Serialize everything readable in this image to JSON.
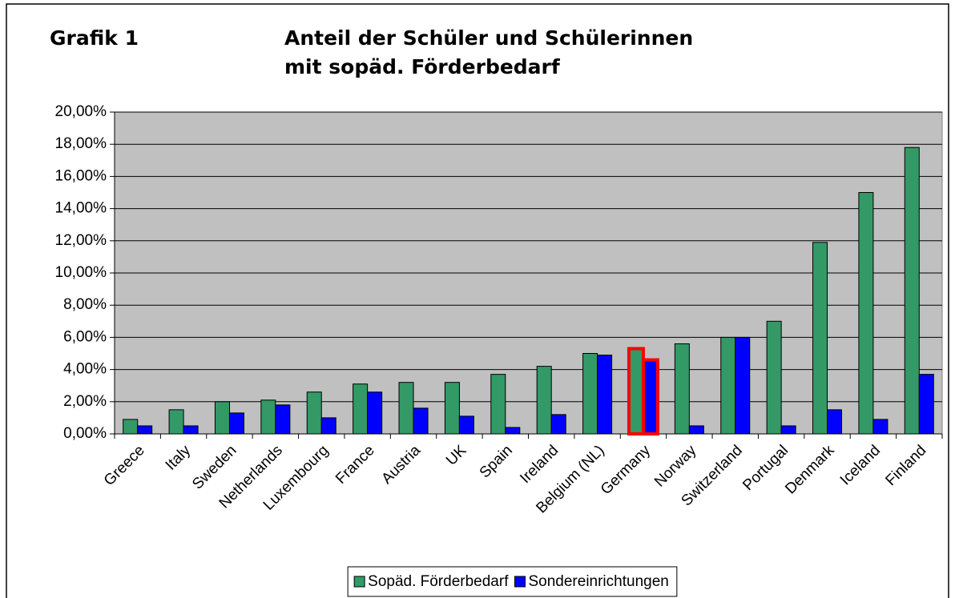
{
  "chart_data": {
    "type": "bar",
    "label": "Grafik 1",
    "title": "Anteil der Schüler und Schülerinnen mit sopäd. Förderbedarf",
    "categories": [
      "Greece",
      "Italy",
      "Sweden",
      "Netherlands",
      "Luxembourg",
      "France",
      "Austria",
      "UK",
      "Spain",
      "Ireland",
      "Belgium (NL)",
      "Germany",
      "Norway",
      "Switzerland",
      "Portugal",
      "Denmark",
      "Iceland",
      "Finland"
    ],
    "series": [
      {
        "name": "Sopäd. Förderbedarf",
        "color": "#339966",
        "values": [
          0.9,
          1.5,
          2.0,
          2.1,
          2.6,
          3.1,
          3.2,
          3.2,
          3.7,
          4.2,
          5.0,
          5.3,
          5.6,
          6.0,
          7.0,
          11.9,
          15.0,
          17.8
        ]
      },
      {
        "name": "Sondereinrichtungen",
        "color": "#0000ff",
        "values": [
          0.5,
          0.5,
          1.3,
          1.8,
          1.0,
          2.6,
          1.6,
          1.1,
          0.4,
          1.2,
          4.9,
          4.6,
          0.5,
          6.0,
          0.5,
          1.5,
          0.9,
          3.7
        ]
      }
    ],
    "ylim": [
      0,
      20
    ],
    "yticks": [
      {
        "value": 0,
        "label": "0,00%"
      },
      {
        "value": 2,
        "label": "2,00%"
      },
      {
        "value": 4,
        "label": "4,00%"
      },
      {
        "value": 6,
        "label": "6,00%"
      },
      {
        "value": 8,
        "label": "8,00%"
      },
      {
        "value": 10,
        "label": "10,00%"
      },
      {
        "value": 12,
        "label": "12,00%"
      },
      {
        "value": 14,
        "label": "14,00%"
      },
      {
        "value": 16,
        "label": "16,00%"
      },
      {
        "value": 18,
        "label": "18,00%"
      },
      {
        "value": 20,
        "label": "20,00%"
      }
    ],
    "grid": true,
    "plot_background": "#c0c0c0",
    "highlight_category": "Germany",
    "highlight_color": "#ff0000",
    "legend": "bottom"
  }
}
